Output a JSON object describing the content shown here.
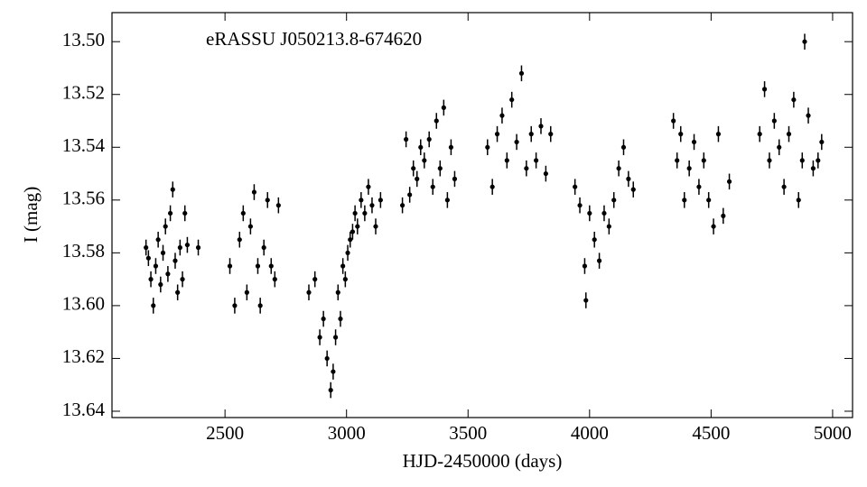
{
  "chart_data": {
    "type": "scatter",
    "title": "eRASSU J050213.8-674620",
    "x_label": "HJD-2450000 (days)",
    "y_label": "I (mag)",
    "xlim": [
      2035,
      5082
    ],
    "ylim": [
      13.489,
      13.6424
    ],
    "y_inverted": true,
    "color": "#000000",
    "yerr": 0.003,
    "xticks": [
      2500,
      3000,
      3500,
      4000,
      4500,
      5000
    ],
    "yticks": [
      {
        "value": 13.5,
        "label": "13.50"
      },
      {
        "value": 13.52,
        "label": "13.52"
      },
      {
        "value": 13.54,
        "label": "13.54"
      },
      {
        "value": 13.56,
        "label": "13.56"
      },
      {
        "value": 13.58,
        "label": "13.58"
      },
      {
        "value": 13.6,
        "label": "13.60"
      },
      {
        "value": 13.62,
        "label": "13.62"
      },
      {
        "value": 13.64,
        "label": "13.64"
      }
    ],
    "series": [
      {
        "x": [
          2175,
          2185,
          2195,
          2205,
          2215,
          2225,
          2235,
          2245,
          2255,
          2265,
          2275,
          2285,
          2295,
          2305,
          2315,
          2325,
          2335,
          2345,
          2390,
          2520,
          2540,
          2560,
          2575,
          2590,
          2605,
          2620,
          2635,
          2645,
          2660,
          2675,
          2690,
          2705,
          2720,
          2845,
          2870,
          2890,
          2905,
          2920,
          2935,
          2945,
          2955,
          2965,
          2975,
          2985,
          2995,
          3005,
          3015,
          3025,
          3035,
          3045,
          3060,
          3075,
          3090,
          3105,
          3120,
          3140,
          3230,
          3245,
          3260,
          3275,
          3290,
          3305,
          3320,
          3340,
          3355,
          3370,
          3385,
          3400,
          3415,
          3430,
          3445,
          3580,
          3600,
          3620,
          3640,
          3660,
          3680,
          3700,
          3720,
          3740,
          3760,
          3780,
          3800,
          3820,
          3840,
          3940,
          3960,
          3980,
          3985,
          4000,
          4020,
          4040,
          4060,
          4080,
          4100,
          4120,
          4140,
          4160,
          4180,
          4345,
          4360,
          4375,
          4390,
          4410,
          4430,
          4450,
          4470,
          4490,
          4510,
          4530,
          4550,
          4575,
          4700,
          4720,
          4740,
          4760,
          4780,
          4800,
          4820,
          4840,
          4860,
          4875,
          4885,
          4900,
          4920,
          4940,
          4955
        ],
        "y": [
          13.578,
          13.582,
          13.59,
          13.6,
          13.585,
          13.575,
          13.592,
          13.58,
          13.57,
          13.588,
          13.565,
          13.556,
          13.583,
          13.595,
          13.578,
          13.59,
          13.565,
          13.577,
          13.578,
          13.585,
          13.6,
          13.575,
          13.565,
          13.595,
          13.57,
          13.557,
          13.585,
          13.6,
          13.578,
          13.56,
          13.585,
          13.59,
          13.562,
          13.595,
          13.59,
          13.612,
          13.605,
          13.62,
          13.632,
          13.625,
          13.612,
          13.595,
          13.605,
          13.585,
          13.59,
          13.58,
          13.575,
          13.572,
          13.565,
          13.57,
          13.56,
          13.565,
          13.555,
          13.562,
          13.57,
          13.56,
          13.562,
          13.537,
          13.558,
          13.548,
          13.552,
          13.54,
          13.545,
          13.537,
          13.555,
          13.53,
          13.548,
          13.525,
          13.56,
          13.54,
          13.552,
          13.54,
          13.555,
          13.535,
          13.528,
          13.545,
          13.522,
          13.538,
          13.512,
          13.548,
          13.535,
          13.545,
          13.532,
          13.55,
          13.535,
          13.555,
          13.562,
          13.585,
          13.598,
          13.565,
          13.575,
          13.583,
          13.565,
          13.57,
          13.56,
          13.548,
          13.54,
          13.552,
          13.556,
          13.53,
          13.545,
          13.535,
          13.56,
          13.548,
          13.538,
          13.555,
          13.545,
          13.56,
          13.57,
          13.535,
          13.566,
          13.553,
          13.535,
          13.518,
          13.545,
          13.53,
          13.54,
          13.555,
          13.535,
          13.522,
          13.56,
          13.545,
          13.5,
          13.528,
          13.548,
          13.545,
          13.538
        ]
      }
    ]
  }
}
